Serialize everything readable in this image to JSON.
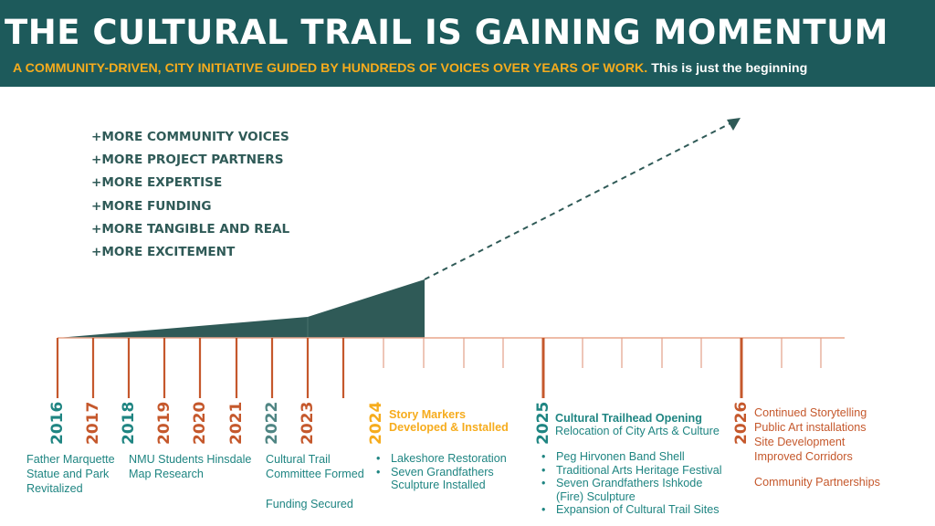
{
  "header": {
    "title": "THE CULTURAL TRAIL IS GAINING MOMENTUM",
    "subtitle_highlight": "A COMMUNITY-DRIVEN, CITY INITIATIVE GUIDED BY HUNDREDS OF VOICES OVER YEARS OF WORK.",
    "subtitle_tail": "This is just the beginning"
  },
  "more": [
    "+MORE COMMUNITY VOICES",
    "+MORE PROJECT PARTNERS",
    "+MORE EXPERTISE",
    "+MORE FUNDING",
    "+MORE TANGIBLE AND REAL",
    "+MORE EXCITEMENT"
  ],
  "colors": {
    "header_bg": "#1d5a5b",
    "accent_yellow": "#f6ac1d",
    "orange": "#c5582c",
    "teal": "#1f8582",
    "dark_green": "#2f5a57"
  },
  "years": [
    {
      "label": "2016",
      "color": "#1f8582"
    },
    {
      "label": "2017",
      "color": "#c5582c"
    },
    {
      "label": "2018",
      "color": "#1f8582"
    },
    {
      "label": "2019",
      "color": "#c5582c"
    },
    {
      "label": "2020",
      "color": "#c5582c"
    },
    {
      "label": "2021",
      "color": "#c5582c"
    },
    {
      "label": "2022",
      "color": "#4f8583"
    },
    {
      "label": "2023",
      "color": "#c5582c"
    },
    {
      "label": "2024",
      "color": "#f6ac1d"
    },
    {
      "label": "2025",
      "color": "#1f8582"
    },
    {
      "label": "2026",
      "color": "#c5582c"
    }
  ],
  "events": {
    "e2016": "Father Marquette\nStatue and Park\nRevitalized",
    "e2018": "NMU Students Hinsdale\nMap Research",
    "e2022a": "Cultural Trail\nCommittee Formed",
    "e2022b": "Funding Secured",
    "e2024_title": "Story Markers\nDeveloped & Installed",
    "e2024_items": [
      "Lakeshore Restoration",
      "Seven Grandfathers\nSculpture Installed"
    ],
    "e2025_title": "Cultural Trailhead Opening",
    "e2025_sub": "Relocation of City Arts & Culture",
    "e2025_items": [
      "Peg Hirvonen Band Shell",
      "Traditional Arts Heritage Festival",
      "Seven Grandfathers Ishkode\n(Fire) Sculpture",
      "Expansion of Cultural Trail Sites"
    ],
    "e2026_items": "Continued Storytelling\nPublic Art installations\nSite Development\nImproved Corridors",
    "e2026_extra": "Community Partnerships"
  }
}
